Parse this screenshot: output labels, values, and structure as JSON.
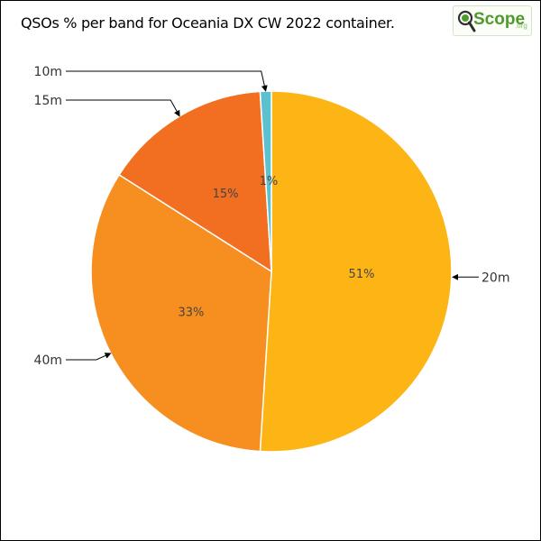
{
  "chart_data": {
    "type": "pie",
    "title": "QSOs % per band for Oceania DX CW 2022 container.",
    "start_angle_deg": 0,
    "direction": "clockwise",
    "slices": [
      {
        "label": "20m",
        "value": 51,
        "value_label": "51%",
        "color": "#fdb515",
        "leader_side": "right"
      },
      {
        "label": "40m",
        "value": 33,
        "value_label": "33%",
        "color": "#f68e20",
        "leader_side": "left"
      },
      {
        "label": "15m",
        "value": 15,
        "value_label": "15%",
        "color": "#f26f22",
        "leader_side": "left"
      },
      {
        "label": "10m",
        "value": 1,
        "value_label": "1%",
        "color": "#5bc0d0",
        "leader_side": "left"
      }
    ]
  },
  "logo": {
    "word": "Scope",
    "suffix": ".org",
    "icon": "magnifier-q-icon"
  }
}
